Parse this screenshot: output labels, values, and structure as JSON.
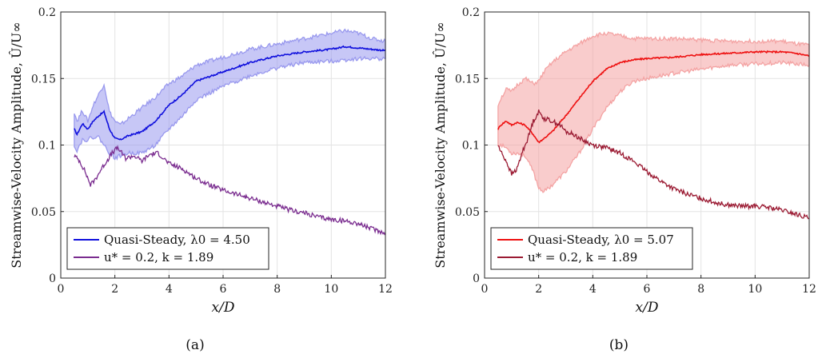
{
  "chart_data": [
    {
      "type": "line",
      "caption": "(a)",
      "xlabel": "x/D",
      "ylabel": "Streamwise-Velocity Amplitude, Û/U∞",
      "xlim": [
        0,
        12
      ],
      "ylim": [
        0,
        0.2
      ],
      "xticks": [
        "0",
        "2",
        "4",
        "6",
        "8",
        "10",
        "12"
      ],
      "yticks": [
        "0",
        "0.05",
        "0.1",
        "0.15",
        "0.2"
      ],
      "grid": true,
      "legend_position": "bottom-left",
      "series": [
        {
          "name": "Quasi-Steady, λ0 = 4.50",
          "color": "#1010dd",
          "band_color": "#9999ee",
          "x": [
            0.5,
            0.6,
            0.8,
            1.0,
            1.2,
            1.4,
            1.6,
            1.8,
            2.0,
            2.2,
            2.5,
            3.0,
            3.5,
            4.0,
            4.5,
            5.0,
            6.0,
            7.0,
            8.0,
            9.0,
            10.0,
            10.5,
            11.0,
            11.5,
            12.0
          ],
          "values": [
            0.112,
            0.108,
            0.116,
            0.112,
            0.118,
            0.122,
            0.125,
            0.112,
            0.105,
            0.104,
            0.107,
            0.11,
            0.118,
            0.13,
            0.138,
            0.148,
            0.155,
            0.162,
            0.167,
            0.17,
            0.172,
            0.174,
            0.173,
            0.172,
            0.171
          ],
          "upper": [
            0.125,
            0.118,
            0.126,
            0.118,
            0.13,
            0.138,
            0.146,
            0.125,
            0.118,
            0.115,
            0.12,
            0.128,
            0.136,
            0.146,
            0.152,
            0.16,
            0.166,
            0.172,
            0.176,
            0.18,
            0.184,
            0.186,
            0.184,
            0.18,
            0.178
          ],
          "lower": [
            0.1,
            0.096,
            0.104,
            0.104,
            0.106,
            0.106,
            0.1,
            0.094,
            0.09,
            0.092,
            0.094,
            0.094,
            0.1,
            0.112,
            0.122,
            0.134,
            0.144,
            0.152,
            0.158,
            0.162,
            0.163,
            0.164,
            0.165,
            0.165,
            0.165
          ]
        },
        {
          "name": "u* = 0.2, k = 1.89",
          "color": "#7a2c8f",
          "x": [
            0.5,
            0.7,
            0.9,
            1.1,
            1.3,
            1.5,
            1.7,
            1.9,
            2.1,
            2.4,
            2.7,
            3.0,
            3.3,
            3.6,
            4.0,
            4.5,
            5.0,
            5.5,
            6.0,
            6.5,
            7.0,
            7.5,
            8.0,
            8.5,
            9.0,
            9.5,
            10.0,
            10.5,
            11.0,
            11.5,
            12.0
          ],
          "values": [
            0.092,
            0.088,
            0.08,
            0.07,
            0.075,
            0.082,
            0.088,
            0.094,
            0.098,
            0.09,
            0.092,
            0.088,
            0.093,
            0.094,
            0.086,
            0.082,
            0.075,
            0.07,
            0.066,
            0.063,
            0.06,
            0.057,
            0.054,
            0.051,
            0.049,
            0.046,
            0.044,
            0.043,
            0.041,
            0.037,
            0.034
          ]
        }
      ]
    },
    {
      "type": "line",
      "caption": "(b)",
      "xlabel": "x/D",
      "ylabel": "Streamwise-Velocity Amplitude, Û/U∞",
      "xlim": [
        0,
        12
      ],
      "ylim": [
        0,
        0.2
      ],
      "xticks": [
        "0",
        "2",
        "4",
        "6",
        "8",
        "10",
        "12"
      ],
      "yticks": [
        "0",
        "0.05",
        "0.1",
        "0.15",
        "0.2"
      ],
      "grid": true,
      "legend_position": "bottom-left",
      "series": [
        {
          "name": "Quasi-Steady, λ0 = 5.07",
          "color": "#ee1111",
          "band_color": "#f4a3a3",
          "x": [
            0.5,
            0.6,
            0.8,
            1.0,
            1.2,
            1.5,
            1.8,
            2.0,
            2.2,
            2.5,
            3.0,
            3.5,
            4.0,
            4.5,
            5.0,
            5.5,
            6.0,
            7.0,
            8.0,
            9.0,
            10.0,
            11.0,
            11.5,
            12.0
          ],
          "values": [
            0.112,
            0.115,
            0.118,
            0.115,
            0.117,
            0.115,
            0.108,
            0.102,
            0.105,
            0.11,
            0.122,
            0.135,
            0.148,
            0.157,
            0.162,
            0.164,
            0.165,
            0.166,
            0.168,
            0.169,
            0.17,
            0.17,
            0.169,
            0.167
          ],
          "upper": [
            0.13,
            0.135,
            0.142,
            0.14,
            0.145,
            0.15,
            0.146,
            0.148,
            0.155,
            0.162,
            0.17,
            0.176,
            0.182,
            0.184,
            0.182,
            0.18,
            0.18,
            0.18,
            0.179,
            0.178,
            0.178,
            0.178,
            0.176,
            0.175
          ],
          "lower": [
            0.1,
            0.1,
            0.098,
            0.094,
            0.094,
            0.092,
            0.08,
            0.068,
            0.065,
            0.07,
            0.08,
            0.094,
            0.112,
            0.128,
            0.14,
            0.148,
            0.15,
            0.154,
            0.157,
            0.16,
            0.161,
            0.162,
            0.161,
            0.16
          ]
        },
        {
          "name": "u* = 0.2, k = 1.89",
          "color": "#9b1b33",
          "x": [
            0.5,
            0.6,
            0.8,
            1.0,
            1.2,
            1.4,
            1.6,
            1.8,
            2.0,
            2.2,
            2.5,
            2.8,
            3.0,
            3.3,
            3.6,
            4.0,
            4.5,
            5.0,
            5.5,
            6.0,
            6.5,
            7.0,
            7.5,
            8.0,
            8.5,
            9.0,
            9.5,
            10.0,
            10.5,
            11.0,
            11.5,
            12.0
          ],
          "values": [
            0.1,
            0.095,
            0.088,
            0.078,
            0.082,
            0.095,
            0.105,
            0.118,
            0.125,
            0.12,
            0.118,
            0.115,
            0.11,
            0.108,
            0.104,
            0.1,
            0.098,
            0.094,
            0.088,
            0.08,
            0.073,
            0.067,
            0.063,
            0.06,
            0.057,
            0.055,
            0.054,
            0.054,
            0.053,
            0.051,
            0.048,
            0.045
          ]
        }
      ]
    }
  ]
}
